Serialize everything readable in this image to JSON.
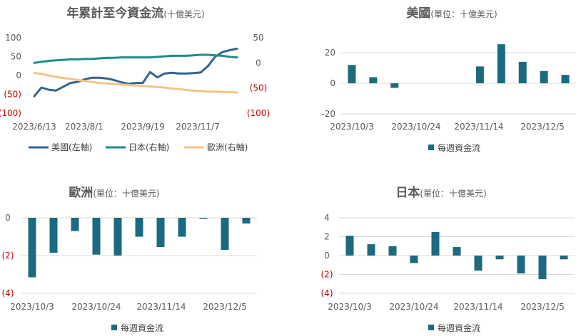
{
  "chart_data": [
    {
      "id": "cumulative",
      "type": "line",
      "title": "年累計至今資金流",
      "title_sub": "(十億美元)",
      "x_labels": [
        "2023/6/13",
        "2023/8/1",
        "2023/9/19",
        "2023/11/7"
      ],
      "left_axis": {
        "ticks": [
          "100",
          "50",
          "0",
          "(50)",
          "(100)"
        ],
        "ylim": [
          -100,
          100
        ]
      },
      "right_axis": {
        "ticks": [
          "50",
          "0",
          "(50)",
          "(100)"
        ],
        "ylim": [
          -100,
          50
        ]
      },
      "series": [
        {
          "name": "美國(左軸)",
          "axis": "left",
          "color": "#35648f",
          "values": [
            -55,
            -32,
            -38,
            -40,
            -30,
            -20,
            -17,
            -10,
            -6,
            -6,
            -8,
            -12,
            -18,
            -22,
            -20,
            -20,
            9,
            -5,
            5,
            7,
            5,
            5,
            6,
            8,
            25,
            50,
            62,
            67,
            71
          ]
        },
        {
          "name": "日本(右軸)",
          "axis": "right",
          "color": "#1e8c8c",
          "values": [
            0,
            2,
            4,
            5,
            6,
            7,
            7,
            8,
            8,
            9,
            10,
            10,
            11,
            11,
            11,
            11,
            11,
            12,
            13,
            14,
            14,
            14,
            15,
            16,
            16,
            15,
            14,
            12,
            11
          ]
        },
        {
          "name": "歐洲(右軸)",
          "axis": "right",
          "color": "#f0c589",
          "values": [
            -20,
            -22,
            -25,
            -28,
            -30,
            -32,
            -34,
            -36,
            -38,
            -40,
            -41,
            -42,
            -43,
            -44,
            -45,
            -46,
            -47,
            -48,
            -49,
            -51,
            -52,
            -54,
            -55,
            -56,
            -57,
            -57,
            -58,
            -58,
            -59
          ]
        }
      ]
    },
    {
      "id": "us",
      "type": "bar",
      "title": "美國",
      "title_sub": "(單位：十億美元)",
      "x_labels": [
        "2023/10/3",
        "2023/10/24",
        "2023/11/14",
        "2023/12/5"
      ],
      "y_ticks": [
        "20",
        "0",
        "-20"
      ],
      "ylim": [
        -20,
        20
      ],
      "color": "#1b6a80",
      "values": [
        12,
        4,
        -3,
        0,
        0,
        0,
        11,
        25.5,
        14,
        8,
        5.5
      ],
      "legend": "每週資金流"
    },
    {
      "id": "europe",
      "type": "bar",
      "title": "歐洲",
      "title_sub": "(單位：十億美元)",
      "x_labels": [
        "2023/10/3",
        "2023/10/24",
        "2023/11/14",
        "2023/12/5"
      ],
      "y_ticks": [
        "0",
        "(2)",
        "(4)"
      ],
      "ylim": [
        -4,
        0
      ],
      "color": "#1b6a80",
      "values": [
        -3.15,
        -1.85,
        -0.7,
        -1.95,
        -2.0,
        -1.0,
        -1.55,
        -1.0,
        -0.05,
        -1.7,
        -0.3
      ],
      "legend": "每週資金流"
    },
    {
      "id": "japan",
      "type": "bar",
      "title": "日本",
      "title_sub": "(單位：十億美元)",
      "x_labels": [
        "2023/10/3",
        "2023/10/24",
        "2023/11/14",
        "2023/12/5"
      ],
      "y_ticks": [
        "4",
        "2",
        "0",
        "(2)",
        "(4)"
      ],
      "ylim": [
        -4,
        4
      ],
      "color": "#1b6a80",
      "values": [
        2.1,
        1.2,
        1.0,
        -0.8,
        2.5,
        0.9,
        -1.6,
        -0.4,
        -1.9,
        -2.5,
        -0.4
      ],
      "legend": "每週資金流"
    }
  ]
}
